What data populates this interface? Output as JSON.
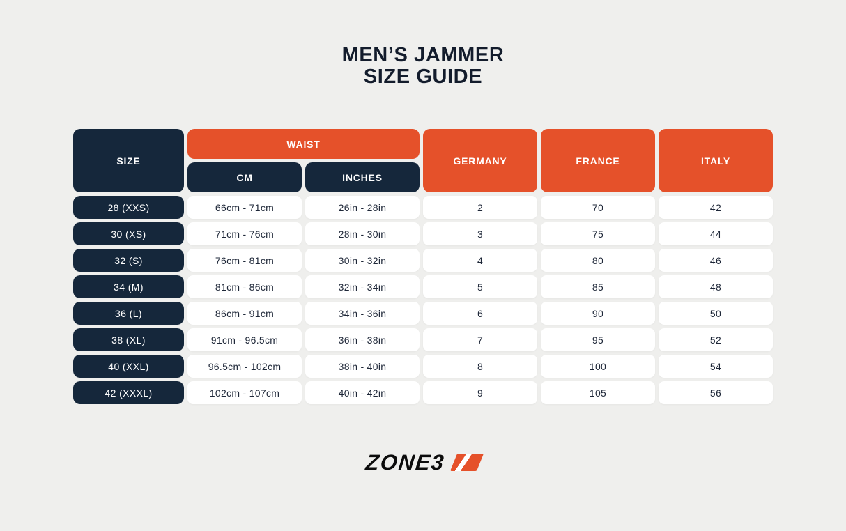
{
  "page": {
    "title_line1": "MEN’S JAMMER",
    "title_line2": "SIZE GUIDE"
  },
  "colors": {
    "background": "#efefed",
    "navy": "#15273b",
    "orange": "#e5512a",
    "cell_white": "#ffffff",
    "cell_text": "#1e2738",
    "title_text": "#131c2c"
  },
  "table": {
    "headers": {
      "size": "SIZE",
      "waist": "WAIST",
      "cm": "CM",
      "inches": "INCHES",
      "germany": "GERMANY",
      "france": "FRANCE",
      "italy": "ITALY"
    },
    "rows": [
      {
        "size": "28 (XXS)",
        "cm": "66cm - 71cm",
        "inches": "26in - 28in",
        "germany": "2",
        "france": "70",
        "italy": "42"
      },
      {
        "size": "30 (XS)",
        "cm": "71cm - 76cm",
        "inches": "28in - 30in",
        "germany": "3",
        "france": "75",
        "italy": "44"
      },
      {
        "size": "32 (S)",
        "cm": "76cm - 81cm",
        "inches": "30in - 32in",
        "germany": "4",
        "france": "80",
        "italy": "46"
      },
      {
        "size": "34 (M)",
        "cm": "81cm - 86cm",
        "inches": "32in - 34in",
        "germany": "5",
        "france": "85",
        "italy": "48"
      },
      {
        "size": "36 (L)",
        "cm": "86cm - 91cm",
        "inches": "34in - 36in",
        "germany": "6",
        "france": "90",
        "italy": "50"
      },
      {
        "size": "38 (XL)",
        "cm": "91cm - 96.5cm",
        "inches": "36in - 38in",
        "germany": "7",
        "france": "95",
        "italy": "52"
      },
      {
        "size": "40 (XXL)",
        "cm": "96.5cm - 102cm",
        "inches": "38in - 40in",
        "germany": "8",
        "france": "100",
        "italy": "54"
      },
      {
        "size": "42 (XXXL)",
        "cm": "102cm - 107cm",
        "inches": "40in - 42in",
        "germany": "9",
        "france": "105",
        "italy": "56"
      }
    ]
  },
  "footer": {
    "brand": "ZONE3",
    "logo_mark": "orange-parallelogram-white-slash"
  },
  "chart_data": {
    "type": "table",
    "title": "MEN’S JAMMER SIZE GUIDE",
    "columns": [
      "SIZE",
      "WAIST CM",
      "WAIST INCHES",
      "GERMANY",
      "FRANCE",
      "ITALY"
    ],
    "rows": [
      [
        "28 (XXS)",
        "66cm - 71cm",
        "26in - 28in",
        2,
        70,
        42
      ],
      [
        "30 (XS)",
        "71cm - 76cm",
        "28in - 30in",
        3,
        75,
        44
      ],
      [
        "32 (S)",
        "76cm - 81cm",
        "30in - 32in",
        4,
        80,
        46
      ],
      [
        "34 (M)",
        "81cm - 86cm",
        "32in - 34in",
        5,
        85,
        48
      ],
      [
        "36 (L)",
        "86cm - 91cm",
        "34in - 36in",
        6,
        90,
        50
      ],
      [
        "38 (XL)",
        "91cm - 96.5cm",
        "36in - 38in",
        7,
        95,
        52
      ],
      [
        "40 (XXL)",
        "96.5cm - 102cm",
        "38in - 40in",
        8,
        100,
        54
      ],
      [
        "42 (XXXL)",
        "102cm - 107cm",
        "40in - 42in",
        9,
        105,
        56
      ]
    ]
  }
}
